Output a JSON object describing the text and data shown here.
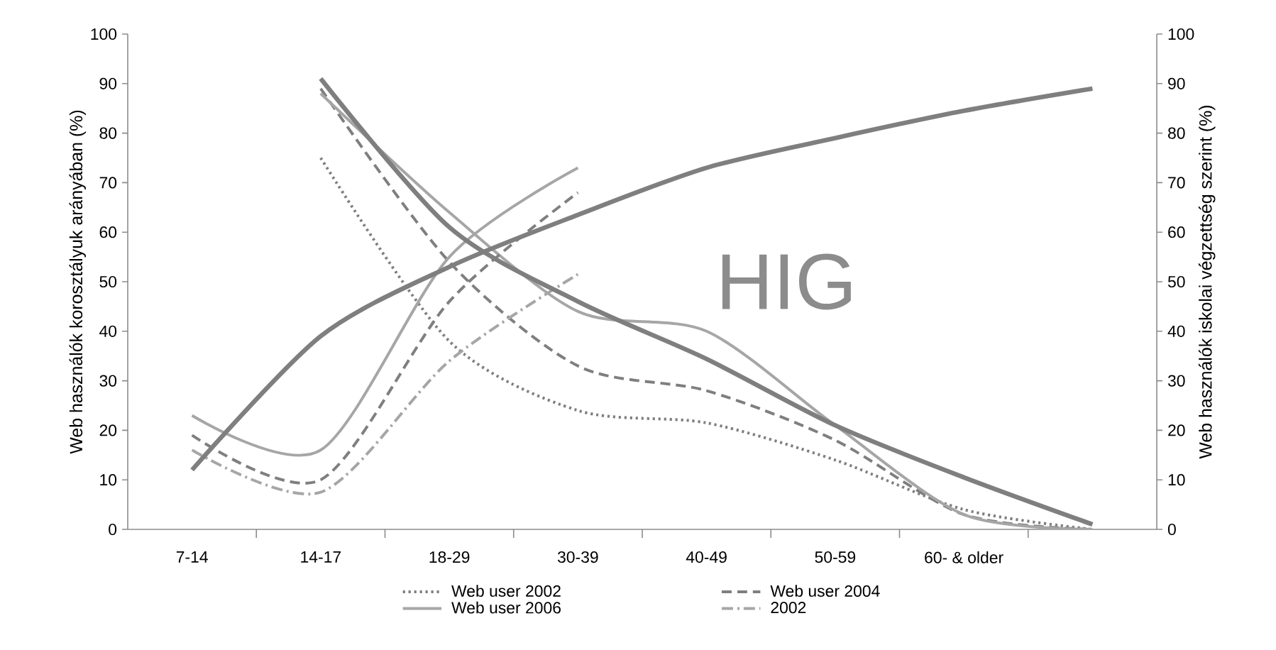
{
  "chart_data": {
    "type": "line",
    "ylabel": "Web használók korosztályuk arányában (%)",
    "y2label": "Web használók iskolai végzettség szerint (%)",
    "annotations": [
      "HIG"
    ],
    "categories": [
      "7-14",
      "14-17",
      "18-29",
      "30-39",
      "40-49",
      "50-59",
      "60- & older",
      null
    ],
    "ylim": [
      0,
      100
    ],
    "yticks": [
      0,
      10,
      20,
      30,
      40,
      50,
      60,
      70,
      80,
      90,
      100
    ],
    "y2lim": [
      0,
      100
    ],
    "y2ticks": [
      0,
      10,
      20,
      30,
      40,
      50,
      60,
      70,
      80,
      90,
      100
    ],
    "legend": "bottom",
    "series": [
      {
        "name": "Web user 2002",
        "color": "#7f7f7f",
        "line_style": "dotted",
        "values": [
          null,
          75,
          38,
          24,
          21.5,
          14,
          4,
          0
        ]
      },
      {
        "name": "Web user 2004",
        "color": "#7f7f7f",
        "line_style": "dashed",
        "values": [
          null,
          89,
          54,
          33,
          28,
          18,
          3,
          0
        ]
      },
      {
        "name": "Web user 2006",
        "color": "#a6a6a6",
        "line_style": "solid",
        "values": [
          null,
          88,
          64,
          44,
          40,
          21,
          3,
          0
        ]
      },
      {
        "name": "2002",
        "color": "#a6a6a6",
        "line_style": "dashdot",
        "values": [
          16,
          7.5,
          34,
          51.5,
          null,
          null,
          null,
          null
        ]
      },
      {
        "color": "#a6a6a6",
        "line_style": "solid",
        "values": [
          23,
          16,
          55,
          73,
          null,
          null,
          null,
          null
        ]
      },
      {
        "color": "#7f7f7f",
        "line_style": "dashed",
        "values": [
          19,
          10,
          46,
          68,
          null,
          null,
          null,
          null
        ]
      },
      {
        "color": "#7f7f7f",
        "line_style": "solid",
        "axis": "y2",
        "values": [
          12,
          39,
          53,
          63.5,
          73,
          79,
          84.5,
          89
        ]
      },
      {
        "color": "#7f7f7f",
        "line_style": "solid",
        "axis": "y2",
        "values": [
          null,
          91,
          61,
          46,
          34.4,
          21,
          10.5,
          1
        ]
      }
    ]
  }
}
